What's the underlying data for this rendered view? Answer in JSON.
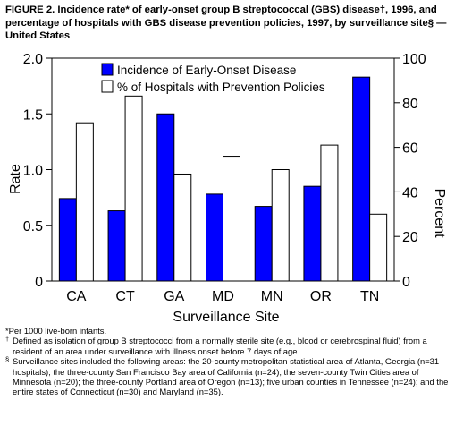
{
  "figure": {
    "title": "FIGURE 2. Incidence rate* of early-onset group B streptococcal (GBS) disease†, 1996, and percentage of hospitals with GBS disease prevention policies, 1997, by surveillance site§ — United States"
  },
  "chart_data": {
    "type": "bar",
    "categories": [
      "CA",
      "CT",
      "GA",
      "MD",
      "MN",
      "OR",
      "TN"
    ],
    "series": [
      {
        "name": "Incidence of Early-Onset Disease",
        "axis": "left",
        "fill": "#0000ff",
        "values": [
          0.74,
          0.63,
          1.5,
          0.78,
          0.67,
          0.85,
          1.83
        ]
      },
      {
        "name": "% of Hospitals with Prevention Policies",
        "axis": "right",
        "fill": "#ffffff",
        "values": [
          71,
          83,
          48,
          56,
          50,
          61,
          30
        ]
      }
    ],
    "xlabel": "Surveillance Site",
    "ylabel": "Rate",
    "y2label": "Percent",
    "ylim": [
      0,
      2.0
    ],
    "y2lim": [
      0,
      100
    ],
    "yticks": [
      "0",
      "0.5",
      "1.0",
      "1.5",
      "2.0"
    ],
    "y2ticks": [
      "0",
      "20",
      "40",
      "60",
      "80",
      "100"
    ],
    "legend_position": "top-left",
    "grid": false
  },
  "footnotes": [
    {
      "mark": "",
      "text": "*Per 1000 live-born infants."
    },
    {
      "mark": "†",
      "text": "Defined as isolation of group B streptococci from a normally sterile site (e.g., blood or cerebrospinal fluid) from a resident of an area under surveillance with illness onset before 7 days of age."
    },
    {
      "mark": "§",
      "text": "Surveillance sites included the following areas: the 20-county metropolitan statistical area of Atlanta, Georgia (n=31 hospitals); the three-county San Francisco Bay area of California (n=24); the seven-county Twin Cities area of Minnesota (n=20); the three-county Portland area of Oregon (n=13); five urban counties in Tennessee (n=24); and the entire states of Connecticut (n=30) and Maryland (n=35)."
    }
  ]
}
